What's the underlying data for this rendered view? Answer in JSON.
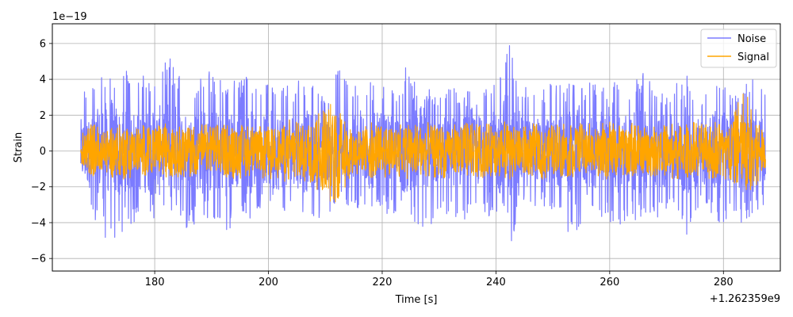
{
  "chart_data": {
    "type": "line",
    "title": "",
    "xlabel": "Time [s]",
    "ylabel": "Strain",
    "x_offset_label": "+1.262359e9",
    "y_scale_label": "1e−19",
    "xlim": [
      162,
      290
    ],
    "ylim": [
      -6.7,
      7.1
    ],
    "x_ticks": [
      180,
      200,
      220,
      240,
      260,
      280
    ],
    "y_ticks": [
      -6,
      -4,
      -2,
      0,
      2,
      4,
      6
    ],
    "x_tick_labels": [
      "180",
      "200",
      "220",
      "240",
      "260",
      "280"
    ],
    "y_tick_labels": [
      "−6",
      "−4",
      "−2",
      "0",
      "2",
      "4",
      "6"
    ],
    "grid": true,
    "legend_position": "top-right",
    "x_range": [
      167.0,
      287.4
    ],
    "series": [
      {
        "name": "Noise",
        "color": "#7b7bff",
        "envelope_upper": [
          3.2,
          3.9,
          4.6,
          3.8,
          4.8,
          4.0,
          4.4,
          4.6,
          5.3,
          4.1,
          3.6,
          4.6,
          4.3,
          3.9,
          4.0,
          4.5,
          3.2,
          4.4,
          3.8,
          3.9,
          4.3,
          3.4,
          3.0,
          4.8,
          3.7,
          4.5,
          3.9,
          3.8,
          3.3,
          4.8,
          3.5,
          3.6,
          3.3,
          3.5,
          3.8,
          3.1,
          4.4,
          3.9,
          6.5,
          4.1,
          3.7,
          3.4,
          3.9,
          3.6,
          4.3,
          3.7,
          4.0,
          3.4,
          4.3,
          3.8,
          4.6,
          3.9,
          3.6,
          3.8,
          4.2,
          3.0,
          3.9,
          4.0,
          3.6,
          3.6,
          4.4,
          3.1
        ],
        "envelope_lower": [
          -2.6,
          -3.5,
          -4.9,
          -5.4,
          -4.1,
          -4.4,
          -4.2,
          -3.8,
          -3.8,
          -4.3,
          -4.5,
          -3.8,
          -4.0,
          -4.6,
          -3.9,
          -3.9,
          -3.2,
          -3.1,
          -4.0,
          -3.9,
          -3.6,
          -4.0,
          -3.4,
          -3.3,
          -3.1,
          -3.4,
          -3.2,
          -3.5,
          -3.6,
          -3.0,
          -4.7,
          -4.5,
          -3.3,
          -3.8,
          -4.3,
          -3.3,
          -4.1,
          -3.6,
          -6.1,
          -3.5,
          -3.2,
          -3.0,
          -3.6,
          -3.8,
          -5.6,
          -3.3,
          -4.2,
          -3.9,
          -4.3,
          -3.7,
          -4.4,
          -3.6,
          -3.9,
          -3.3,
          -4.8,
          -3.6,
          -3.2,
          -5.2,
          -3.8,
          -4.2,
          -3.5,
          -2.9
        ]
      },
      {
        "name": "Signal",
        "color": "#ffa500",
        "envelope_upper": [
          1.1,
          1.6,
          1.3,
          1.7,
          1.5,
          1.4,
          1.6,
          1.5,
          1.7,
          1.4,
          1.6,
          1.5,
          1.4,
          1.7,
          1.5,
          1.6,
          1.5,
          1.6,
          1.7,
          1.8,
          1.5,
          2.1,
          2.6,
          2.7,
          1.4,
          1.5,
          1.6,
          1.4,
          1.5,
          1.6,
          1.5,
          1.6,
          1.4,
          1.5,
          1.7,
          1.6,
          1.5,
          1.6,
          1.7,
          1.5,
          1.6,
          1.4,
          1.5,
          1.6,
          1.5,
          1.6,
          1.4,
          1.7,
          1.5,
          1.6,
          1.5,
          1.4,
          1.6,
          1.5,
          1.7,
          1.6,
          1.5,
          1.8,
          1.6,
          4.0,
          1.9,
          1.2
        ],
        "envelope_lower": [
          -1.0,
          -1.4,
          -1.3,
          -1.5,
          -1.6,
          -1.4,
          -1.5,
          -1.6,
          -1.4,
          -1.5,
          -1.6,
          -1.4,
          -1.5,
          -1.5,
          -1.6,
          -1.4,
          -1.5,
          -1.6,
          -1.8,
          -1.5,
          -1.7,
          -2.3,
          -2.8,
          -3.1,
          -1.5,
          -1.4,
          -1.6,
          -1.5,
          -1.4,
          -1.6,
          -1.5,
          -1.4,
          -1.6,
          -1.5,
          -1.4,
          -1.6,
          -1.5,
          -1.4,
          -1.6,
          -1.5,
          -1.4,
          -1.6,
          -1.5,
          -1.4,
          -1.6,
          -1.5,
          -1.4,
          -1.6,
          -1.5,
          -1.4,
          -1.6,
          -1.5,
          -1.4,
          -1.6,
          -1.5,
          -1.4,
          -1.6,
          -1.5,
          -1.7,
          -2.4,
          -2.1,
          -1.1
        ]
      }
    ]
  }
}
